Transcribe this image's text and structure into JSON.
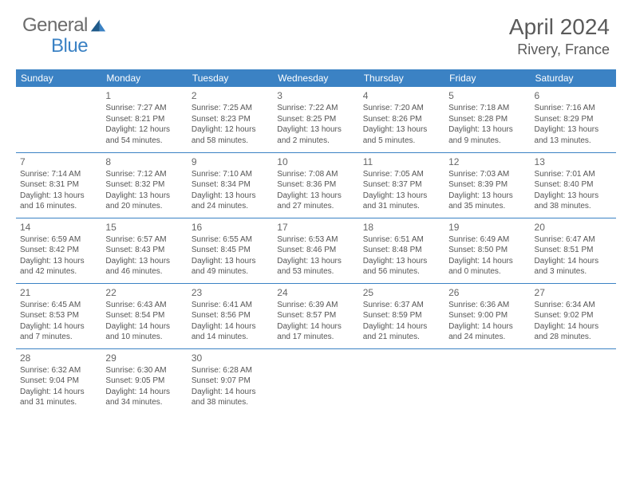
{
  "logo": {
    "general": "General",
    "blue": "Blue"
  },
  "title": "April 2024",
  "location": "Rivery, France",
  "colors": {
    "header_bg": "#3b82c4",
    "header_text": "#ffffff",
    "body_text": "#555555",
    "title_text": "#5a5a5a",
    "rule": "#3b82c4"
  },
  "dow": [
    "Sunday",
    "Monday",
    "Tuesday",
    "Wednesday",
    "Thursday",
    "Friday",
    "Saturday"
  ],
  "weeks": [
    [
      null,
      {
        "n": "1",
        "sr": "7:27 AM",
        "ss": "8:21 PM",
        "dl": "12 hours and 54 minutes."
      },
      {
        "n": "2",
        "sr": "7:25 AM",
        "ss": "8:23 PM",
        "dl": "12 hours and 58 minutes."
      },
      {
        "n": "3",
        "sr": "7:22 AM",
        "ss": "8:25 PM",
        "dl": "13 hours and 2 minutes."
      },
      {
        "n": "4",
        "sr": "7:20 AM",
        "ss": "8:26 PM",
        "dl": "13 hours and 5 minutes."
      },
      {
        "n": "5",
        "sr": "7:18 AM",
        "ss": "8:28 PM",
        "dl": "13 hours and 9 minutes."
      },
      {
        "n": "6",
        "sr": "7:16 AM",
        "ss": "8:29 PM",
        "dl": "13 hours and 13 minutes."
      }
    ],
    [
      {
        "n": "7",
        "sr": "7:14 AM",
        "ss": "8:31 PM",
        "dl": "13 hours and 16 minutes."
      },
      {
        "n": "8",
        "sr": "7:12 AM",
        "ss": "8:32 PM",
        "dl": "13 hours and 20 minutes."
      },
      {
        "n": "9",
        "sr": "7:10 AM",
        "ss": "8:34 PM",
        "dl": "13 hours and 24 minutes."
      },
      {
        "n": "10",
        "sr": "7:08 AM",
        "ss": "8:36 PM",
        "dl": "13 hours and 27 minutes."
      },
      {
        "n": "11",
        "sr": "7:05 AM",
        "ss": "8:37 PM",
        "dl": "13 hours and 31 minutes."
      },
      {
        "n": "12",
        "sr": "7:03 AM",
        "ss": "8:39 PM",
        "dl": "13 hours and 35 minutes."
      },
      {
        "n": "13",
        "sr": "7:01 AM",
        "ss": "8:40 PM",
        "dl": "13 hours and 38 minutes."
      }
    ],
    [
      {
        "n": "14",
        "sr": "6:59 AM",
        "ss": "8:42 PM",
        "dl": "13 hours and 42 minutes."
      },
      {
        "n": "15",
        "sr": "6:57 AM",
        "ss": "8:43 PM",
        "dl": "13 hours and 46 minutes."
      },
      {
        "n": "16",
        "sr": "6:55 AM",
        "ss": "8:45 PM",
        "dl": "13 hours and 49 minutes."
      },
      {
        "n": "17",
        "sr": "6:53 AM",
        "ss": "8:46 PM",
        "dl": "13 hours and 53 minutes."
      },
      {
        "n": "18",
        "sr": "6:51 AM",
        "ss": "8:48 PM",
        "dl": "13 hours and 56 minutes."
      },
      {
        "n": "19",
        "sr": "6:49 AM",
        "ss": "8:50 PM",
        "dl": "14 hours and 0 minutes."
      },
      {
        "n": "20",
        "sr": "6:47 AM",
        "ss": "8:51 PM",
        "dl": "14 hours and 3 minutes."
      }
    ],
    [
      {
        "n": "21",
        "sr": "6:45 AM",
        "ss": "8:53 PM",
        "dl": "14 hours and 7 minutes."
      },
      {
        "n": "22",
        "sr": "6:43 AM",
        "ss": "8:54 PM",
        "dl": "14 hours and 10 minutes."
      },
      {
        "n": "23",
        "sr": "6:41 AM",
        "ss": "8:56 PM",
        "dl": "14 hours and 14 minutes."
      },
      {
        "n": "24",
        "sr": "6:39 AM",
        "ss": "8:57 PM",
        "dl": "14 hours and 17 minutes."
      },
      {
        "n": "25",
        "sr": "6:37 AM",
        "ss": "8:59 PM",
        "dl": "14 hours and 21 minutes."
      },
      {
        "n": "26",
        "sr": "6:36 AM",
        "ss": "9:00 PM",
        "dl": "14 hours and 24 minutes."
      },
      {
        "n": "27",
        "sr": "6:34 AM",
        "ss": "9:02 PM",
        "dl": "14 hours and 28 minutes."
      }
    ],
    [
      {
        "n": "28",
        "sr": "6:32 AM",
        "ss": "9:04 PM",
        "dl": "14 hours and 31 minutes."
      },
      {
        "n": "29",
        "sr": "6:30 AM",
        "ss": "9:05 PM",
        "dl": "14 hours and 34 minutes."
      },
      {
        "n": "30",
        "sr": "6:28 AM",
        "ss": "9:07 PM",
        "dl": "14 hours and 38 minutes."
      },
      null,
      null,
      null,
      null
    ]
  ],
  "labels": {
    "sunrise": "Sunrise: ",
    "sunset": "Sunset: ",
    "daylight": "Daylight: "
  }
}
